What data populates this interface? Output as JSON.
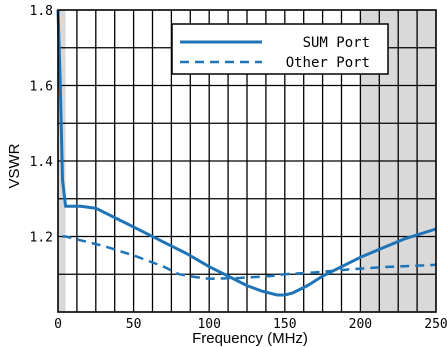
{
  "chart_data": {
    "type": "line",
    "title": "",
    "xlabel": "Frequency (MHz)",
    "ylabel": "VSWR",
    "xlim": [
      0,
      250
    ],
    "ylim": [
      1.0,
      1.8
    ],
    "x_ticks": [
      0,
      50,
      100,
      150,
      200,
      250
    ],
    "y_ticks": [
      1.2,
      1.4,
      1.6,
      1.8
    ],
    "x_tick_labels": [
      "0",
      "50",
      "100",
      "150",
      "200",
      "250"
    ],
    "y_tick_labels": [
      "1.2",
      "1.4",
      "1.6",
      "1.8"
    ],
    "grid": true,
    "x_minor_step": 12.5,
    "y_minor_step": 0.1,
    "shaded_regions": [
      [
        0,
        5
      ],
      [
        200,
        250
      ]
    ],
    "legend_position": "top-right",
    "series": [
      {
        "name": "SUM Port",
        "style": "solid",
        "color": "#1f73b7",
        "x": [
          0,
          1.5,
          3,
          5,
          10,
          15,
          25,
          40,
          55,
          70,
          85,
          100,
          115,
          125,
          135,
          145,
          150,
          155,
          165,
          175,
          190,
          200,
          215,
          230,
          250
        ],
        "y": [
          1.8,
          1.6,
          1.35,
          1.28,
          1.28,
          1.28,
          1.275,
          1.245,
          1.215,
          1.185,
          1.155,
          1.12,
          1.09,
          1.07,
          1.055,
          1.045,
          1.045,
          1.05,
          1.07,
          1.095,
          1.125,
          1.145,
          1.17,
          1.195,
          1.22
        ]
      },
      {
        "name": "Other Port",
        "style": "dashed",
        "color": "#1f73b7",
        "x": [
          3,
          5,
          15,
          30,
          50,
          70,
          80,
          90,
          100,
          120,
          140,
          150,
          170,
          190,
          200,
          220,
          235,
          250
        ],
        "y": [
          1.2,
          1.2,
          1.19,
          1.175,
          1.15,
          1.12,
          1.1,
          1.093,
          1.088,
          1.09,
          1.095,
          1.1,
          1.105,
          1.112,
          1.115,
          1.12,
          1.122,
          1.125
        ]
      }
    ]
  }
}
